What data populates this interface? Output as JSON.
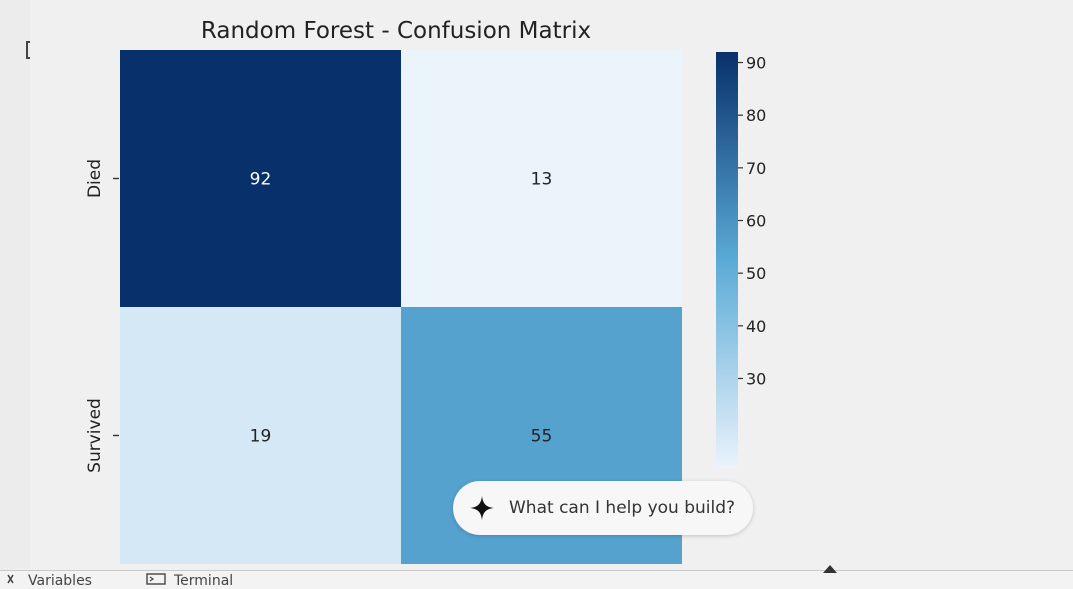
{
  "chart_data": {
    "type": "heatmap",
    "title": "Random Forest - Confusion Matrix",
    "rows": [
      "Died",
      "Survived"
    ],
    "columns": [
      "",
      ""
    ],
    "values": [
      [
        92,
        13
      ],
      [
        19,
        55
      ]
    ],
    "colormap": "Blues",
    "colorbar": {
      "ticks": [
        90,
        80,
        70,
        60,
        50,
        40,
        30
      ],
      "range": [
        13,
        92
      ]
    },
    "xlabel": "",
    "ylabel": ""
  },
  "colors": {
    "low": "#ebf3fb",
    "mid": "#5aaad6",
    "high": "#08306b"
  },
  "ui": {
    "output_icon": "output-toggle-icon",
    "ai_prompt": {
      "icon": "sparkle-icon",
      "text": "What can I help you build?"
    },
    "bottom_tabs": [
      {
        "icon": "variables-icon",
        "label": "Variables"
      },
      {
        "icon": "terminal-icon",
        "label": "Terminal"
      }
    ],
    "panel_toggle_icon": "caret-up-icon"
  }
}
